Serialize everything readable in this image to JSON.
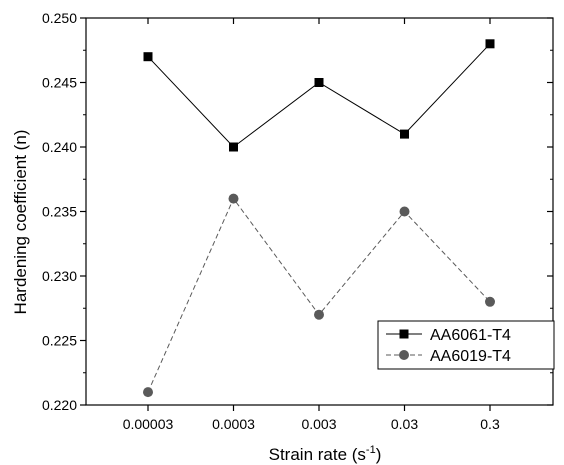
{
  "chart_data": {
    "type": "line",
    "categories": [
      "0.00003",
      "0.0003",
      "0.003",
      "0.03",
      "0.3"
    ],
    "series": [
      {
        "name": "AA6061-T4",
        "values": [
          0.247,
          0.24,
          0.245,
          0.241,
          0.248
        ],
        "color": "#000000",
        "marker": "square",
        "line_style": "solid"
      },
      {
        "name": "AA6019-T4",
        "values": [
          0.221,
          0.236,
          0.227,
          0.235,
          0.228
        ],
        "color": "#5a5a5a",
        "marker": "circle",
        "line_style": "dashed"
      }
    ],
    "xlabel": "Strain rate (s",
    "xlabel_superscript": "-1",
    "xlabel_suffix": ")",
    "ylabel": "Hardening coefficient (n)",
    "ylim": [
      0.22,
      0.25
    ],
    "yticks": [
      "0.220",
      "0.225",
      "0.230",
      "0.235",
      "0.240",
      "0.245",
      "0.250"
    ],
    "ytick_values": [
      0.22,
      0.225,
      0.23,
      0.235,
      0.24,
      0.245,
      0.25
    ],
    "legend_position": "bottom-right",
    "grid": false
  }
}
